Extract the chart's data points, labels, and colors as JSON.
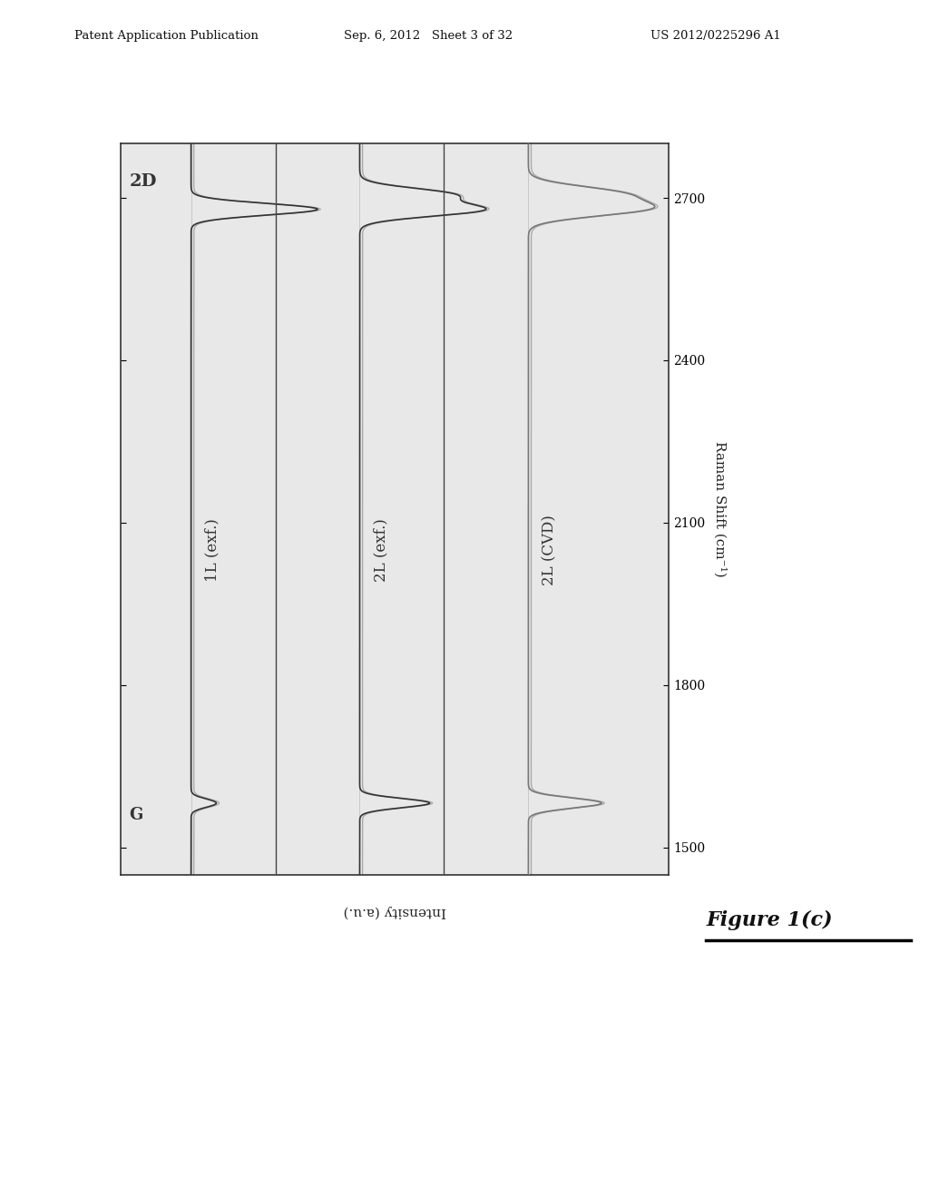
{
  "header_left": "Patent Application Publication",
  "header_mid": "Sep. 6, 2012   Sheet 3 of 32",
  "header_right": "US 2012/0225296 A1",
  "xlabel_rotated": "Raman Shift (cm⁻¹)",
  "ylabel_rotated": "Intensity (a.u.)",
  "figure_label": "Figure 1(c)",
  "x_ticks": [
    1500,
    1800,
    2100,
    2400,
    2700
  ],
  "x_min": 1450,
  "x_max": 2800,
  "trace_labels": [
    "1L (exf.)",
    "2L (exf.)",
    "2L (CVD)"
  ],
  "label_2D": "2D",
  "label_G": "G",
  "background_color": "#ffffff",
  "box_facecolor": "#e8e8e8",
  "box_edgecolor": "#333333",
  "trace_color_dark": "#333333",
  "trace_color_mid": "#777777",
  "trace_color_light": "#aaaaaa"
}
